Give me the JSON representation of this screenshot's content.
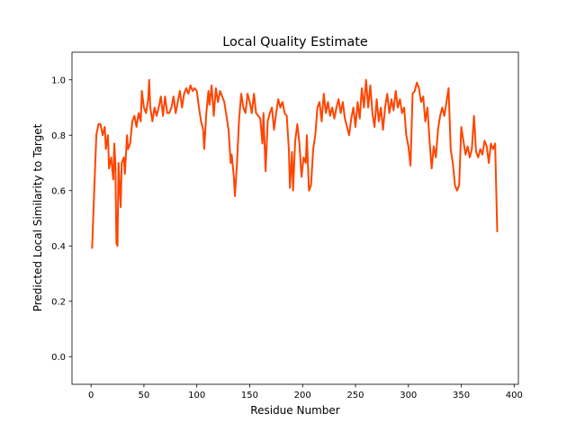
{
  "chart_data": {
    "type": "line",
    "title": "Local Quality Estimate",
    "x_label": "Residue Number",
    "y_label": "Predicted Local Similarity to Target",
    "x": [
      1,
      3,
      5,
      7,
      9,
      11,
      13,
      14,
      16,
      17,
      19,
      21,
      22,
      23,
      24,
      25,
      26,
      28,
      29,
      31,
      32,
      34,
      35,
      37,
      39,
      41,
      43,
      45,
      47,
      48,
      50,
      52,
      54,
      55,
      56,
      58,
      60,
      62,
      64,
      66,
      68,
      70,
      72,
      74,
      76,
      78,
      80,
      82,
      84,
      86,
      88,
      90,
      92,
      94,
      96,
      98,
      100,
      102,
      104,
      106,
      107,
      109,
      111,
      112,
      114,
      116,
      118,
      120,
      122,
      124,
      126,
      128,
      130,
      132,
      133,
      135,
      136,
      138,
      140,
      142,
      144,
      146,
      148,
      150,
      152,
      154,
      156,
      158,
      160,
      162,
      163,
      165,
      167,
      169,
      171,
      173,
      175,
      177,
      179,
      181,
      183,
      185,
      187,
      188,
      190,
      191,
      193,
      195,
      197,
      199,
      201,
      203,
      204,
      206,
      208,
      210,
      212,
      214,
      216,
      218,
      220,
      222,
      224,
      226,
      228,
      230,
      232,
      234,
      236,
      238,
      240,
      242,
      244,
      246,
      248,
      250,
      252,
      254,
      256,
      258,
      260,
      262,
      264,
      266,
      268,
      270,
      272,
      274,
      276,
      278,
      280,
      282,
      284,
      286,
      288,
      290,
      292,
      294,
      296,
      298,
      300,
      302,
      304,
      306,
      308,
      310,
      312,
      314,
      316,
      318,
      320,
      322,
      324,
      326,
      328,
      330,
      332,
      334,
      336,
      338,
      340,
      342,
      344,
      346,
      348,
      350,
      352,
      354,
      356,
      358,
      360,
      362,
      364,
      366,
      368,
      370,
      372,
      374,
      376,
      378,
      380,
      382,
      384
    ],
    "series": [
      {
        "color": "#ff4500",
        "values": [
          0.39,
          0.6,
          0.8,
          0.84,
          0.84,
          0.8,
          0.83,
          0.75,
          0.8,
          0.68,
          0.72,
          0.64,
          0.77,
          0.7,
          0.41,
          0.4,
          0.7,
          0.54,
          0.7,
          0.72,
          0.66,
          0.8,
          0.75,
          0.77,
          0.85,
          0.87,
          0.83,
          0.88,
          0.85,
          0.96,
          0.9,
          0.88,
          0.93,
          1.0,
          0.9,
          0.85,
          0.9,
          0.87,
          0.9,
          0.94,
          0.87,
          0.94,
          0.88,
          0.88,
          0.9,
          0.94,
          0.88,
          0.92,
          0.96,
          0.9,
          0.95,
          0.97,
          0.95,
          0.98,
          0.96,
          0.97,
          0.96,
          0.9,
          0.85,
          0.82,
          0.75,
          0.88,
          0.96,
          0.91,
          0.98,
          0.87,
          0.97,
          0.92,
          0.96,
          0.94,
          0.92,
          0.87,
          0.82,
          0.7,
          0.73,
          0.65,
          0.58,
          0.7,
          0.86,
          0.95,
          0.9,
          0.88,
          0.95,
          0.92,
          0.88,
          0.95,
          0.88,
          0.87,
          0.86,
          0.77,
          0.88,
          0.67,
          0.85,
          0.88,
          0.9,
          0.82,
          0.88,
          0.93,
          0.9,
          0.92,
          0.88,
          0.87,
          0.75,
          0.61,
          0.74,
          0.6,
          0.78,
          0.84,
          0.77,
          0.65,
          0.72,
          0.7,
          0.8,
          0.6,
          0.62,
          0.75,
          0.8,
          0.9,
          0.92,
          0.85,
          0.95,
          0.88,
          0.92,
          0.87,
          0.9,
          0.86,
          0.9,
          0.93,
          0.88,
          0.92,
          0.86,
          0.83,
          0.8,
          0.86,
          0.9,
          0.83,
          0.92,
          0.86,
          0.97,
          0.9,
          1.0,
          0.9,
          0.98,
          0.88,
          0.83,
          0.93,
          0.85,
          0.9,
          0.82,
          0.9,
          0.95,
          0.88,
          0.93,
          0.89,
          0.96,
          0.9,
          0.93,
          0.88,
          0.9,
          0.8,
          0.76,
          0.69,
          0.95,
          0.96,
          0.99,
          0.97,
          0.92,
          0.94,
          0.85,
          0.9,
          0.78,
          0.68,
          0.76,
          0.72,
          0.82,
          0.87,
          0.9,
          0.87,
          0.92,
          0.97,
          0.75,
          0.7,
          0.62,
          0.6,
          0.62,
          0.83,
          0.78,
          0.73,
          0.76,
          0.72,
          0.75,
          0.87,
          0.74,
          0.72,
          0.75,
          0.73,
          0.78,
          0.76,
          0.7,
          0.77,
          0.75,
          0.77,
          0.45
        ]
      }
    ],
    "xlim": [
      -18,
      404
    ],
    "ylim": [
      -0.1,
      1.1
    ],
    "xticks": [
      0,
      50,
      100,
      150,
      200,
      250,
      300,
      350,
      400
    ],
    "yticks": [
      {
        "value": 0,
        "label": "0.0"
      },
      0.2,
      0.4,
      0.6,
      0.8,
      {
        "value": 1,
        "label": "1.0"
      }
    ]
  }
}
